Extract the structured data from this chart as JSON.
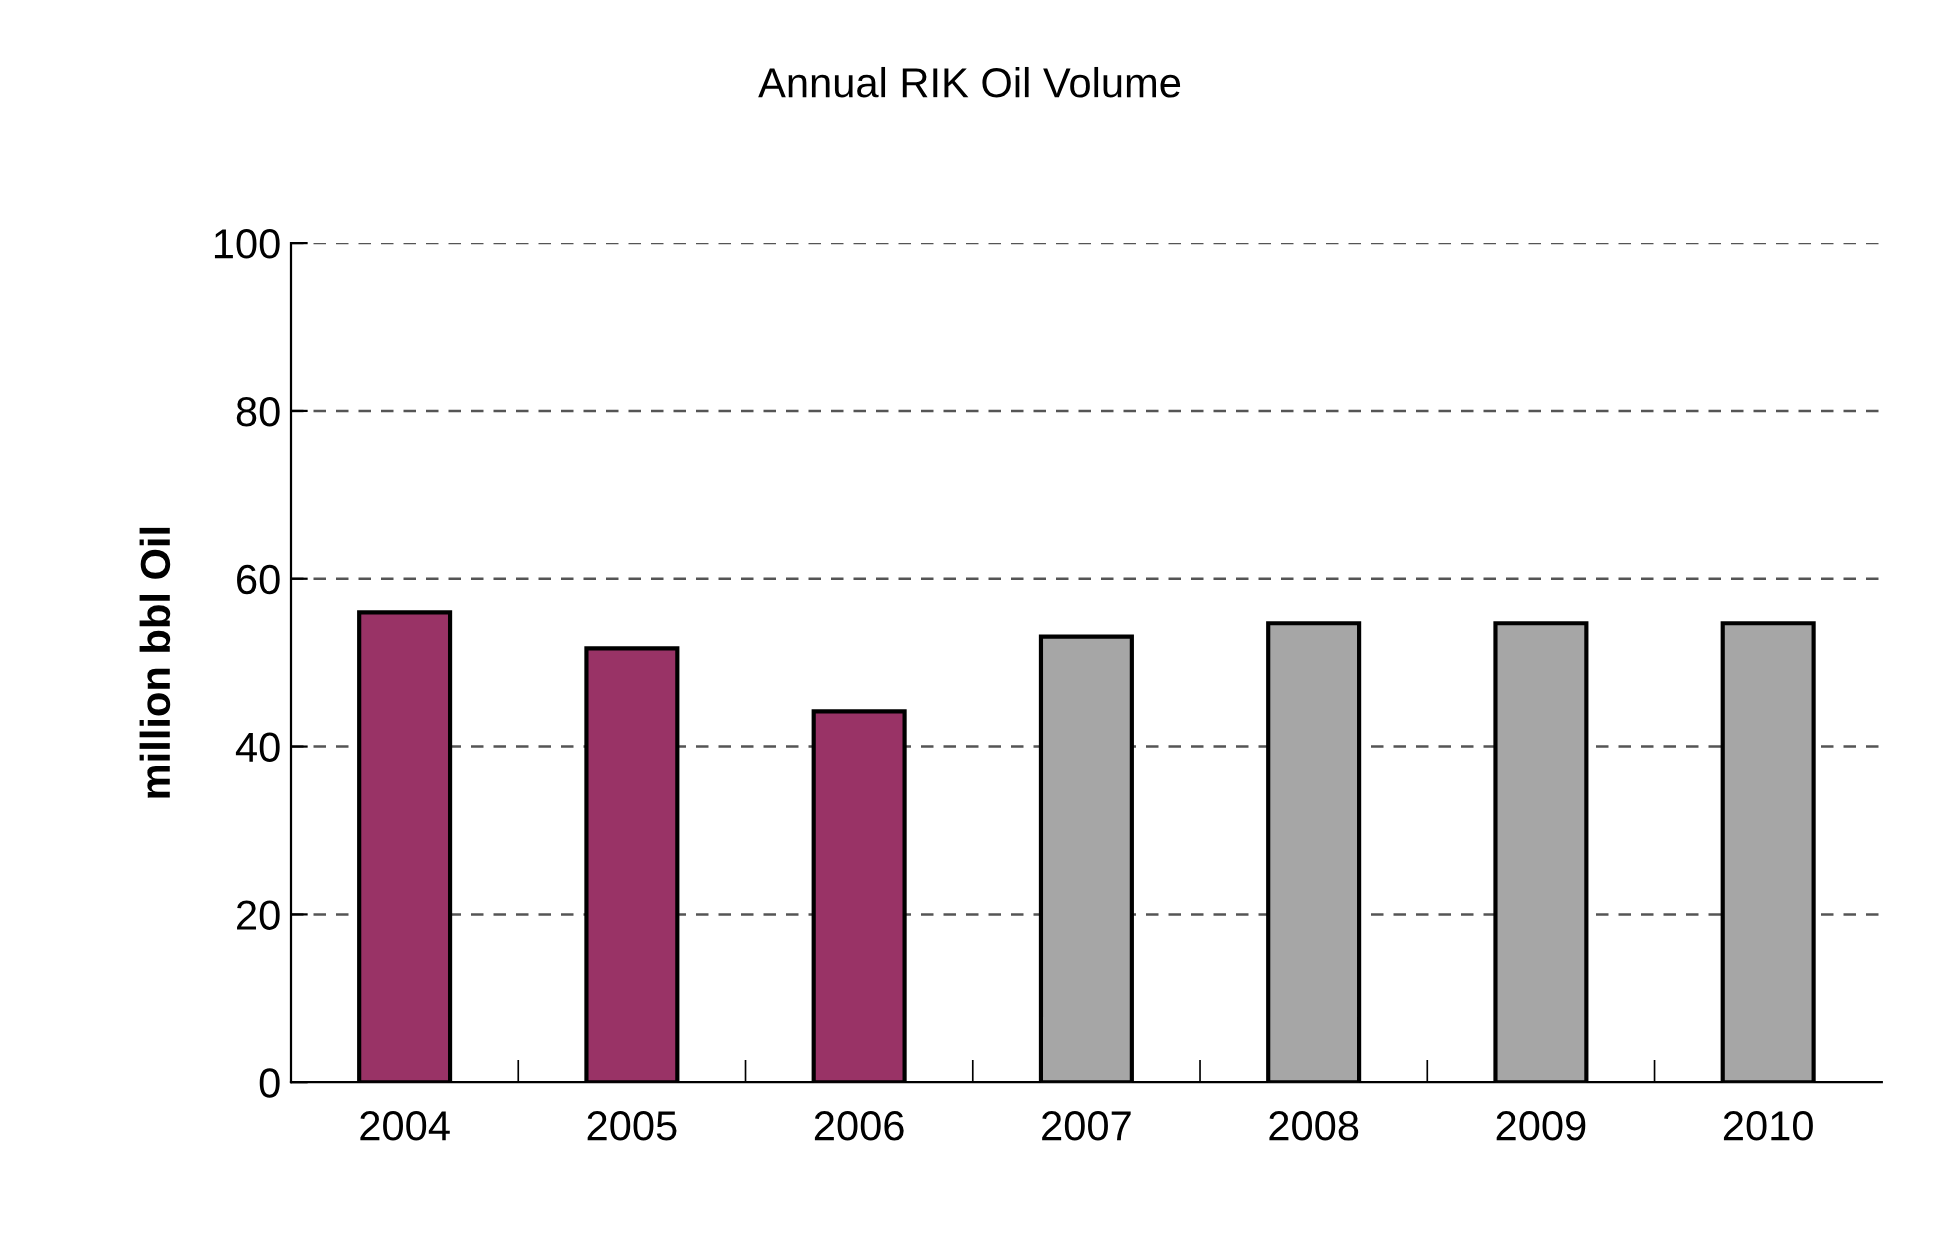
{
  "chart_data": {
    "type": "bar",
    "title": "Annual RIK Oil Volume",
    "ylabel": "million bbl Oil",
    "categories": [
      "2004",
      "2005",
      "2006",
      "2007",
      "2008",
      "2009",
      "2010"
    ],
    "values": [
      56,
      51.7,
      44.2,
      53.1,
      54.7,
      54.7,
      54.7
    ],
    "colors": [
      "#993366",
      "#993366",
      "#993366",
      "#a6a6a6",
      "#a6a6a6",
      "#a6a6a6",
      "#a6a6a6"
    ],
    "ylim": [
      0,
      100
    ],
    "yticks": [
      0,
      20,
      40,
      60,
      80,
      100
    ],
    "grid": "y"
  }
}
